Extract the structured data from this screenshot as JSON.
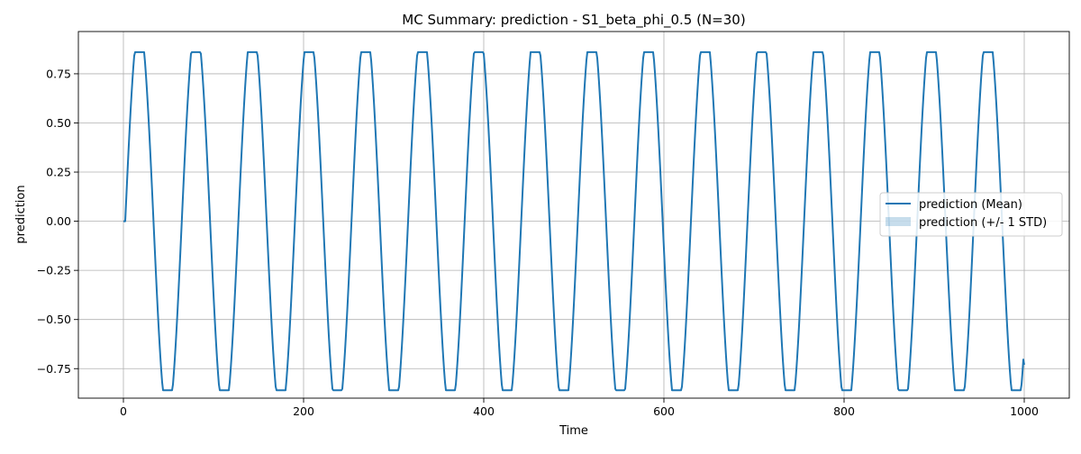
{
  "chart_data": {
    "type": "line",
    "title": "MC Summary: prediction - S1_beta_phi_0.5 (N=30)",
    "xlabel": "Time",
    "ylabel": "prediction",
    "xlim": [
      -50,
      1050
    ],
    "ylim": [
      -0.9,
      0.965
    ],
    "xticks": [
      0,
      200,
      400,
      600,
      800,
      1000
    ],
    "xtick_labels": [
      "0",
      "200",
      "400",
      "600",
      "800",
      "1000"
    ],
    "yticks": [
      -0.75,
      -0.5,
      -0.25,
      0.0,
      0.25,
      0.5,
      0.75
    ],
    "ytick_labels": [
      "−0.75",
      "−0.50",
      "−0.25",
      "0.00",
      "0.25",
      "0.50",
      "0.75"
    ],
    "grid": true,
    "legend": {
      "placement": "center-right",
      "entries": [
        "prediction (Mean)",
        "prediction (+/- 1 STD)"
      ]
    },
    "series": [
      {
        "name": "prediction (Mean)",
        "kind": "line",
        "color": "#1f77b4",
        "generator": {
          "form": "clipped-sine",
          "x_start": 0,
          "x_end": 1000,
          "step": 1,
          "period": 62.8,
          "amplitude": 1.0,
          "clip": 0.86,
          "initial_flat_until": 2,
          "end_value": -0.73
        }
      },
      {
        "name": "prediction (+/- 1 STD)",
        "kind": "band",
        "color": "#1f77b4",
        "std": 0.0
      }
    ]
  }
}
